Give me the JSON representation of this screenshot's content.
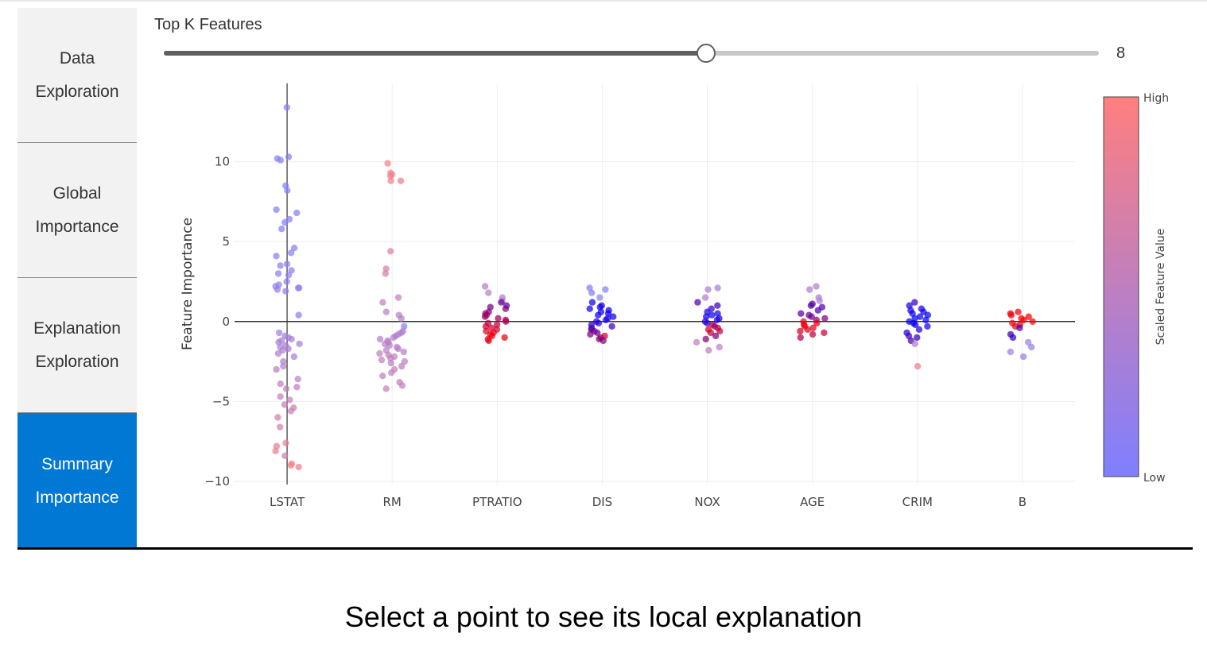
{
  "nav": {
    "items": [
      {
        "line1": "Data",
        "line2": "Exploration",
        "active": false
      },
      {
        "line1": "Global",
        "line2": "Importance",
        "active": false
      },
      {
        "line1": "Explanation",
        "line2": "Exploration",
        "active": false
      },
      {
        "line1": "Summary",
        "line2": "Importance",
        "active": true
      }
    ]
  },
  "slider": {
    "label": "Top K Features",
    "value": "8",
    "fraction": 0.58
  },
  "colors": {
    "accent": "#0078d4",
    "low": "#7f7fff",
    "high": "#ff7f7f"
  },
  "chart_data": {
    "type": "scatter",
    "ylabel": "Feature Importance",
    "categories": [
      "LSTAT",
      "RM",
      "PTRATIO",
      "DIS",
      "NOX",
      "AGE",
      "CRIM",
      "B"
    ],
    "ylim": [
      -10.2,
      14.9
    ],
    "yticks": [
      -10,
      -5,
      0,
      5,
      10
    ],
    "ytick_labels": [
      "−10",
      "−5",
      "0",
      "5",
      "10"
    ],
    "grid": true,
    "colorbar": {
      "title": "Scaled Feature Value",
      "high_label": "High",
      "low_label": "Low"
    },
    "series": [
      {
        "category": "LSTAT",
        "points": [
          [
            13.4,
            0.02
          ],
          [
            10.3,
            0.05
          ],
          [
            10.2,
            0.02
          ],
          [
            10.1,
            0.03
          ],
          [
            8.5,
            0.03
          ],
          [
            8.2,
            0.04
          ],
          [
            7.0,
            0.06
          ],
          [
            6.8,
            0.05
          ],
          [
            6.4,
            0.05
          ],
          [
            6.2,
            0.05
          ],
          [
            5.8,
            0.04
          ],
          [
            4.6,
            0.08
          ],
          [
            4.3,
            0.07
          ],
          [
            4.1,
            0.1
          ],
          [
            3.6,
            0.12
          ],
          [
            3.5,
            0.1
          ],
          [
            3.2,
            0.1
          ],
          [
            3.0,
            0.12
          ],
          [
            2.9,
            0.08
          ],
          [
            2.5,
            0.12
          ],
          [
            2.3,
            0.14
          ],
          [
            2.2,
            0.1
          ],
          [
            2.1,
            0.12
          ],
          [
            2.1,
            0.15
          ],
          [
            2.0,
            0.18
          ],
          [
            1.9,
            0.16
          ],
          [
            0.4,
            0.1
          ],
          [
            -0.7,
            0.25
          ],
          [
            -0.9,
            0.3
          ],
          [
            -1.0,
            0.28
          ],
          [
            -1.1,
            0.3
          ],
          [
            -1.2,
            0.32
          ],
          [
            -1.3,
            0.33
          ],
          [
            -1.4,
            0.33
          ],
          [
            -1.5,
            0.3
          ],
          [
            -1.6,
            0.35
          ],
          [
            -1.7,
            0.35
          ],
          [
            -1.8,
            0.37
          ],
          [
            -2.0,
            0.38
          ],
          [
            -2.2,
            0.35
          ],
          [
            -2.5,
            0.4
          ],
          [
            -2.8,
            0.42
          ],
          [
            -3.0,
            0.45
          ],
          [
            -3.6,
            0.48
          ],
          [
            -3.9,
            0.5
          ],
          [
            -4.1,
            0.48
          ],
          [
            -4.2,
            0.5
          ],
          [
            -4.7,
            0.52
          ],
          [
            -4.9,
            0.55
          ],
          [
            -5.2,
            0.55
          ],
          [
            -5.4,
            0.58
          ],
          [
            -5.6,
            0.6
          ],
          [
            -6.0,
            0.62
          ],
          [
            -6.6,
            0.7
          ],
          [
            -7.6,
            0.8
          ],
          [
            -7.8,
            0.82
          ],
          [
            -8.1,
            0.85
          ],
          [
            -8.4,
            0.62
          ],
          [
            -8.9,
            0.92
          ],
          [
            -9.0,
            0.95
          ],
          [
            -9.1,
            0.9
          ]
        ]
      },
      {
        "category": "RM",
        "points": [
          [
            9.9,
            0.95
          ],
          [
            9.3,
            0.95
          ],
          [
            9.2,
            0.93
          ],
          [
            9.1,
            0.92
          ],
          [
            8.8,
            0.88
          ],
          [
            8.8,
            0.9
          ],
          [
            4.4,
            0.75
          ],
          [
            3.3,
            0.68
          ],
          [
            3.0,
            0.66
          ],
          [
            1.5,
            0.55
          ],
          [
            1.2,
            0.53
          ],
          [
            0.6,
            0.45
          ],
          [
            0.4,
            0.45
          ],
          [
            0.2,
            0.4
          ],
          [
            -0.3,
            0.05
          ],
          [
            -0.6,
            0.35
          ],
          [
            -0.7,
            0.35
          ],
          [
            -0.8,
            0.38
          ],
          [
            -0.9,
            0.38
          ],
          [
            -1.0,
            0.4
          ],
          [
            -1.1,
            0.4
          ],
          [
            -1.2,
            0.42
          ],
          [
            -1.3,
            0.42
          ],
          [
            -1.4,
            0.45
          ],
          [
            -1.5,
            0.45
          ],
          [
            -1.6,
            0.42
          ],
          [
            -1.7,
            0.45
          ],
          [
            -1.8,
            0.48
          ],
          [
            -1.9,
            0.45
          ],
          [
            -2.0,
            0.48
          ],
          [
            -2.1,
            0.5
          ],
          [
            -2.2,
            0.48
          ],
          [
            -2.3,
            0.5
          ],
          [
            -2.4,
            0.5
          ],
          [
            -2.5,
            0.52
          ],
          [
            -2.6,
            0.48
          ],
          [
            -2.8,
            0.5
          ],
          [
            -3.0,
            0.5
          ],
          [
            -3.2,
            0.52
          ],
          [
            -3.4,
            0.52
          ],
          [
            -3.8,
            0.55
          ],
          [
            -4.0,
            0.55
          ],
          [
            -4.2,
            0.55
          ]
        ]
      },
      {
        "category": "PTRATIO",
        "points": [
          [
            2.2,
            0.4
          ],
          [
            1.8,
            0.45
          ],
          [
            1.5,
            0.35
          ],
          [
            1.3,
            0.4
          ],
          [
            1.2,
            0.42
          ],
          [
            1.0,
            0.38
          ],
          [
            0.9,
            0.45
          ],
          [
            0.8,
            0.5
          ],
          [
            0.6,
            0.55
          ],
          [
            0.5,
            0.5
          ],
          [
            0.4,
            0.6
          ],
          [
            0.3,
            0.62
          ],
          [
            0.2,
            0.65
          ],
          [
            0.1,
            0.6
          ],
          [
            0.0,
            0.7
          ],
          [
            -0.1,
            0.72
          ],
          [
            -0.2,
            0.75
          ],
          [
            -0.3,
            0.8
          ],
          [
            -0.4,
            0.82
          ],
          [
            -0.5,
            0.85
          ],
          [
            -0.6,
            0.88
          ],
          [
            -0.7,
            0.9
          ],
          [
            -0.8,
            0.92
          ],
          [
            -0.9,
            0.95
          ],
          [
            -1.0,
            0.95
          ],
          [
            -1.1,
            0.9
          ],
          [
            -1.2,
            0.92
          ]
        ]
      },
      {
        "category": "DIS",
        "points": [
          [
            2.1,
            0.02
          ],
          [
            2.0,
            0.05
          ],
          [
            1.8,
            0.06
          ],
          [
            1.5,
            0.08
          ],
          [
            1.2,
            0.06
          ],
          [
            1.0,
            0.05
          ],
          [
            0.9,
            0.1
          ],
          [
            0.8,
            0.08
          ],
          [
            0.7,
            0.03
          ],
          [
            0.6,
            0.05
          ],
          [
            0.5,
            0.04
          ],
          [
            0.4,
            0.06
          ],
          [
            0.3,
            0.05
          ],
          [
            0.2,
            0.08
          ],
          [
            0.1,
            0.1
          ],
          [
            0.0,
            0.12
          ],
          [
            -0.1,
            0.15
          ],
          [
            -0.2,
            0.2
          ],
          [
            -0.3,
            0.25
          ],
          [
            -0.4,
            0.3
          ],
          [
            -0.5,
            0.35
          ],
          [
            -0.6,
            0.4
          ],
          [
            -0.7,
            0.45
          ],
          [
            -0.8,
            0.5
          ],
          [
            -0.9,
            0.85
          ],
          [
            -1.0,
            0.6
          ],
          [
            -1.1,
            0.55
          ],
          [
            -1.2,
            0.5
          ]
        ]
      },
      {
        "category": "NOX",
        "points": [
          [
            2.1,
            0.3
          ],
          [
            2.0,
            0.35
          ],
          [
            1.5,
            0.4
          ],
          [
            1.2,
            0.35
          ],
          [
            1.0,
            0.25
          ],
          [
            0.8,
            0.2
          ],
          [
            0.6,
            0.15
          ],
          [
            0.5,
            0.1
          ],
          [
            0.4,
            0.08
          ],
          [
            0.3,
            0.05
          ],
          [
            0.2,
            0.1
          ],
          [
            0.1,
            0.12
          ],
          [
            0.0,
            0.15
          ],
          [
            -0.1,
            0.2
          ],
          [
            -0.2,
            0.6
          ],
          [
            -0.3,
            0.65
          ],
          [
            -0.4,
            0.7
          ],
          [
            -0.5,
            0.85
          ],
          [
            -0.6,
            0.75
          ],
          [
            -0.7,
            0.8
          ],
          [
            -0.9,
            0.5
          ],
          [
            -1.1,
            0.55
          ],
          [
            -1.3,
            0.55
          ],
          [
            -1.6,
            0.5
          ],
          [
            -1.8,
            0.5
          ]
        ]
      },
      {
        "category": "AGE",
        "points": [
          [
            2.2,
            0.4
          ],
          [
            2.0,
            0.35
          ],
          [
            1.5,
            0.3
          ],
          [
            1.3,
            0.35
          ],
          [
            1.1,
            0.4
          ],
          [
            1.0,
            0.3
          ],
          [
            0.9,
            0.35
          ],
          [
            0.7,
            0.3
          ],
          [
            0.5,
            0.35
          ],
          [
            0.4,
            0.4
          ],
          [
            0.3,
            0.45
          ],
          [
            0.2,
            0.5
          ],
          [
            0.1,
            0.55
          ],
          [
            0.0,
            0.9
          ],
          [
            -0.1,
            0.92
          ],
          [
            -0.2,
            0.95
          ],
          [
            -0.3,
            0.95
          ],
          [
            -0.4,
            0.9
          ],
          [
            -0.5,
            0.88
          ],
          [
            -0.6,
            0.85
          ],
          [
            -0.7,
            0.8
          ],
          [
            -0.8,
            0.75
          ],
          [
            -1.0,
            0.7
          ]
        ]
      },
      {
        "category": "CRIM",
        "points": [
          [
            1.2,
            0.2
          ],
          [
            1.0,
            0.15
          ],
          [
            0.8,
            0.1
          ],
          [
            0.7,
            0.08
          ],
          [
            0.6,
            0.05
          ],
          [
            0.5,
            0.05
          ],
          [
            0.4,
            0.02
          ],
          [
            0.3,
            0.03
          ],
          [
            0.2,
            0.02
          ],
          [
            0.1,
            0.04
          ],
          [
            0.0,
            0.03
          ],
          [
            -0.1,
            0.05
          ],
          [
            -0.2,
            0.06
          ],
          [
            -0.3,
            0.08
          ],
          [
            -0.5,
            0.1
          ],
          [
            -0.7,
            0.12
          ],
          [
            -0.9,
            0.25
          ],
          [
            -1.0,
            0.2
          ],
          [
            -1.2,
            0.3
          ],
          [
            -1.4,
            0.35
          ],
          [
            -2.8,
            0.9
          ]
        ]
      },
      {
        "category": "B",
        "points": [
          [
            0.6,
            0.95
          ],
          [
            0.5,
            0.93
          ],
          [
            0.4,
            0.95
          ],
          [
            0.3,
            0.97
          ],
          [
            0.2,
            0.98
          ],
          [
            0.1,
            0.97
          ],
          [
            0.0,
            0.98
          ],
          [
            -0.1,
            0.95
          ],
          [
            -0.2,
            0.92
          ],
          [
            -0.3,
            0.9
          ],
          [
            -0.4,
            0.3
          ],
          [
            -0.8,
            0.25
          ],
          [
            -1.0,
            0.2
          ],
          [
            -1.3,
            0.22
          ],
          [
            -1.6,
            0.2
          ],
          [
            -1.9,
            0.25
          ],
          [
            -2.2,
            0.2
          ]
        ]
      }
    ]
  },
  "caption": "Select a point to see its local explanation"
}
